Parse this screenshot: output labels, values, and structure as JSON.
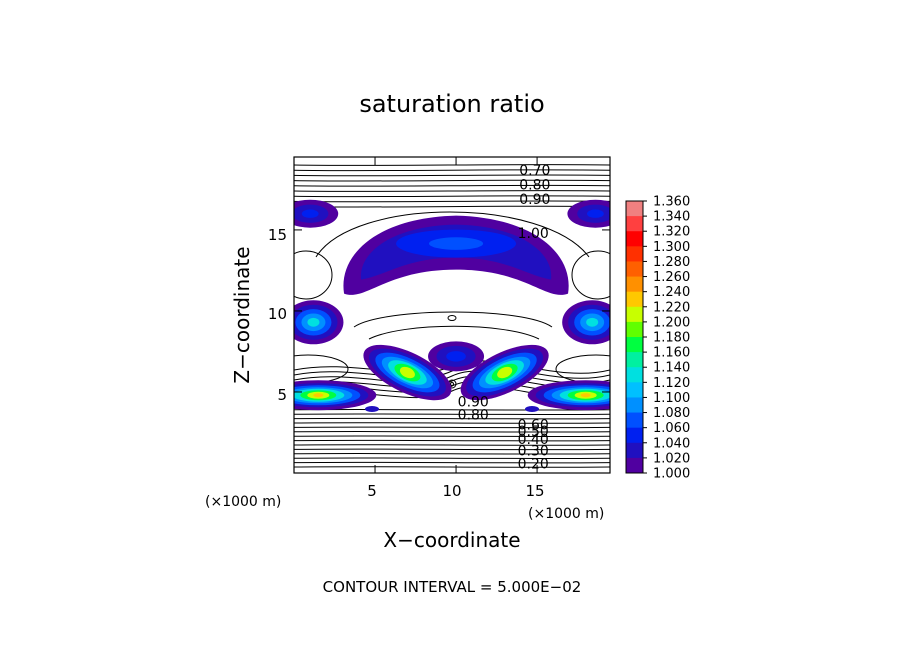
{
  "chart_data": {
    "type": "heatmap",
    "title": "saturation ratio",
    "xlabel": "X−coordinate",
    "ylabel": "Z−coordinate",
    "x_unit": "(×1000 m)",
    "z_unit": "(×1000 m)",
    "xlim": [
      0,
      19.5
    ],
    "ylim": [
      0,
      19.5
    ],
    "x_ticks": [
      "5",
      "10",
      "15"
    ],
    "x_tick_values": [
      5,
      10,
      15
    ],
    "y_ticks": [
      "5",
      "10",
      "15"
    ],
    "y_tick_values": [
      5,
      10,
      15
    ],
    "colorbar": {
      "min": 1.0,
      "max": 1.36,
      "labels": [
        "1.360",
        "1.340",
        "1.320",
        "1.300",
        "1.280",
        "1.260",
        "1.240",
        "1.220",
        "1.200",
        "1.180",
        "1.160",
        "1.140",
        "1.120",
        "1.100",
        "1.080",
        "1.060",
        "1.040",
        "1.020",
        "1.000"
      ],
      "colors": [
        "#f08080",
        "#ff4040",
        "#ff0000",
        "#ff3000",
        "#ff6000",
        "#ff9000",
        "#ffc800",
        "#c8ff00",
        "#60ff00",
        "#00ff40",
        "#00f0a0",
        "#00e0e0",
        "#00c0ff",
        "#0090ff",
        "#0050ff",
        "#0020f0",
        "#2010c0",
        "#5000a0"
      ]
    },
    "contour_labels": [
      {
        "text": "0.70",
        "x": 13.9,
        "z": 18.7
      },
      {
        "text": "0.80",
        "x": 13.9,
        "z": 17.8
      },
      {
        "text": "0.90",
        "x": 13.9,
        "z": 16.9
      },
      {
        "text": "1.00",
        "x": 13.8,
        "z": 14.8
      },
      {
        "text": "0.90",
        "x": 10.1,
        "z": 4.4
      },
      {
        "text": "0.80",
        "x": 10.1,
        "z": 3.6
      },
      {
        "text": "0.60",
        "x": 13.8,
        "z": 3.0
      },
      {
        "text": "0.50",
        "x": 13.8,
        "z": 2.6
      },
      {
        "text": "0.40",
        "x": 13.8,
        "z": 2.1
      },
      {
        "text": "0.30",
        "x": 13.8,
        "z": 1.4
      },
      {
        "text": "0.20",
        "x": 13.8,
        "z": 0.6
      }
    ],
    "supersaturated_regions": [
      {
        "x": 10.0,
        "z": 12.8,
        "peak": 1.05,
        "shape": "dome"
      },
      {
        "x": 1.0,
        "z": 16.0,
        "peak": 1.05
      },
      {
        "x": 18.6,
        "z": 16.0,
        "peak": 1.05
      },
      {
        "x": 1.2,
        "z": 9.3,
        "peak": 1.1
      },
      {
        "x": 18.4,
        "z": 9.3,
        "peak": 1.1
      },
      {
        "x": 10.0,
        "z": 7.2,
        "peak": 1.04
      },
      {
        "x": 7.0,
        "z": 6.2,
        "peak": 1.18
      },
      {
        "x": 13.0,
        "z": 6.2,
        "peak": 1.18
      },
      {
        "x": 1.5,
        "z": 4.8,
        "peak": 1.24
      },
      {
        "x": 18.0,
        "z": 4.8,
        "peak": 1.24
      }
    ]
  },
  "footer": {
    "contour_interval": "CONTOUR INTERVAL = 5.000E−02"
  }
}
